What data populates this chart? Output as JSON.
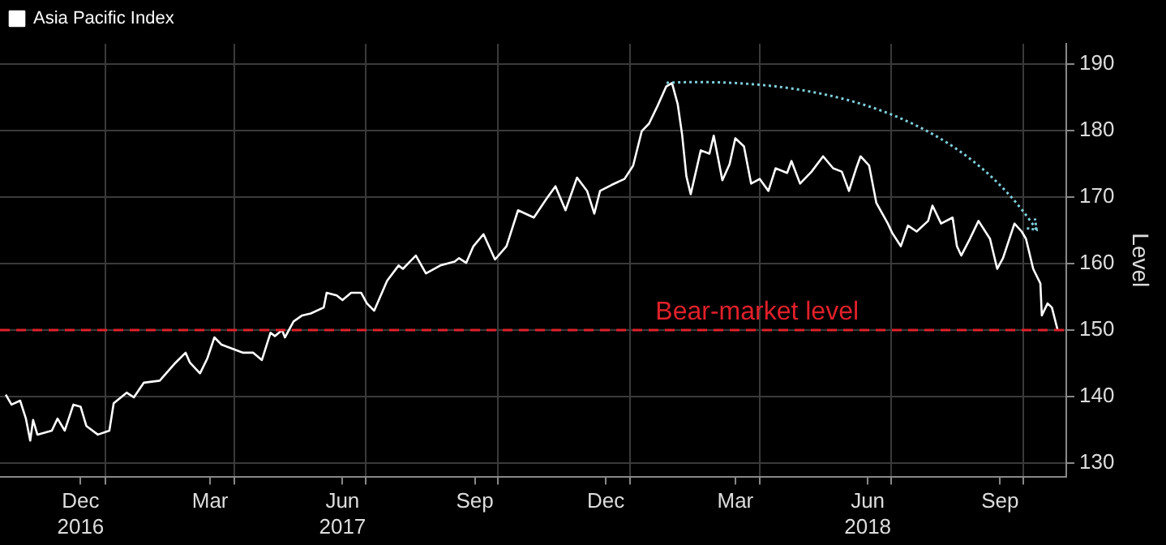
{
  "chart_data": {
    "type": "line",
    "ylabel": "Level",
    "legend": "top left",
    "grid": true,
    "xlim": [
      "2016-10-20",
      "2018-10-31"
    ],
    "ylim": [
      128,
      193
    ],
    "yticks": [
      130,
      140,
      150,
      160,
      170,
      180,
      190
    ],
    "xticks": [
      {
        "value": "2016-12-15",
        "label": "Dec\n2016"
      },
      {
        "value": "2017-01-01",
        "label": null
      },
      {
        "value": "2017-03-15",
        "label": "Mar"
      },
      {
        "value": "2017-04-01",
        "label": null
      },
      {
        "value": "2017-06-15",
        "label": "Jun\n2017"
      },
      {
        "value": "2017-07-01",
        "label": null
      },
      {
        "value": "2017-09-15",
        "label": "Sep"
      },
      {
        "value": "2017-10-01",
        "label": null
      },
      {
        "value": "2017-12-15",
        "label": "Dec"
      },
      {
        "value": "2018-01-01",
        "label": null
      },
      {
        "value": "2018-03-15",
        "label": "Mar"
      },
      {
        "value": "2018-04-01",
        "label": null
      },
      {
        "value": "2018-06-15",
        "label": "Jun\n2018"
      },
      {
        "value": "2018-07-01",
        "label": null
      },
      {
        "value": "2018-09-15",
        "label": "Sep"
      },
      {
        "value": "2018-10-01",
        "label": null
      }
    ],
    "ref_lines": [
      {
        "axis": "y",
        "value": 150,
        "label": "Bear-market level",
        "color": "#e0202a",
        "line_style": "dashed"
      }
    ],
    "series": [
      {
        "name": "Asia Pacific Index",
        "color": "#ffffff",
        "x": [
          "2016-10-24",
          "2016-10-28",
          "2016-11-03",
          "2016-11-07",
          "2016-11-10",
          "2016-11-12",
          "2016-11-15",
          "2016-11-25",
          "2016-11-29",
          "2016-12-04",
          "2016-12-10",
          "2016-12-15",
          "2016-12-19",
          "2016-12-27",
          "2017-01-04",
          "2017-01-07",
          "2017-01-16",
          "2017-01-21",
          "2017-01-28",
          "2017-02-08",
          "2017-02-19",
          "2017-02-26",
          "2017-03-01",
          "2017-03-08",
          "2017-03-13",
          "2017-03-18",
          "2017-03-23",
          "2017-04-07",
          "2017-04-14",
          "2017-04-20",
          "2017-04-26",
          "2017-04-29",
          "2017-05-04",
          "2017-05-06",
          "2017-05-12",
          "2017-05-18",
          "2017-05-24",
          "2017-06-02",
          "2017-06-04",
          "2017-06-11",
          "2017-06-15",
          "2017-06-21",
          "2017-06-28",
          "2017-07-02",
          "2017-07-07",
          "2017-07-16",
          "2017-07-24",
          "2017-07-27",
          "2017-08-05",
          "2017-08-12",
          "2017-08-22",
          "2017-09-01",
          "2017-09-04",
          "2017-09-09",
          "2017-09-14",
          "2017-09-21",
          "2017-09-29",
          "2017-10-07",
          "2017-10-15",
          "2017-10-26",
          "2017-11-04",
          "2017-11-10",
          "2017-11-17",
          "2017-11-25",
          "2017-12-02",
          "2017-12-07",
          "2017-12-11",
          "2017-12-19",
          "2017-12-28",
          "2018-01-03",
          "2018-01-09",
          "2018-01-14",
          "2018-01-20",
          "2018-01-26",
          "2018-01-30",
          "2018-02-03",
          "2018-02-06",
          "2018-02-09",
          "2018-02-12",
          "2018-02-19",
          "2018-02-25",
          "2018-02-28",
          "2018-03-06",
          "2018-03-11",
          "2018-03-15",
          "2018-03-21",
          "2018-03-26",
          "2018-04-01",
          "2018-04-07",
          "2018-04-12",
          "2018-04-20",
          "2018-04-23",
          "2018-04-29",
          "2018-05-07",
          "2018-05-15",
          "2018-05-22",
          "2018-05-28",
          "2018-06-02",
          "2018-06-07",
          "2018-06-10",
          "2018-06-16",
          "2018-06-21",
          "2018-06-29",
          "2018-07-02",
          "2018-07-08",
          "2018-07-13",
          "2018-07-19",
          "2018-07-27",
          "2018-07-30",
          "2018-08-05",
          "2018-08-13",
          "2018-08-16",
          "2018-08-19",
          "2018-08-25",
          "2018-08-31",
          "2018-09-08",
          "2018-09-13",
          "2018-09-17",
          "2018-09-25",
          "2018-09-30",
          "2018-10-03",
          "2018-10-08",
          "2018-10-13",
          "2018-10-14",
          "2018-10-18",
          "2018-10-21",
          "2018-10-25"
        ],
        "values": [
          140.3,
          138.8,
          139.4,
          136.7,
          133.4,
          136.5,
          134.3,
          134.9,
          136.7,
          134.9,
          138.8,
          138.5,
          135.6,
          134.3,
          134.9,
          139,
          140.6,
          139.9,
          142.1,
          142.4,
          145.1,
          146.6,
          145.1,
          143.5,
          145.7,
          148.9,
          147.8,
          146.6,
          146.6,
          145.5,
          149.6,
          149.1,
          150,
          148.9,
          151.3,
          152.2,
          152.5,
          153.4,
          155.6,
          155.2,
          154.5,
          155.6,
          155.6,
          154,
          152.9,
          157.4,
          159.7,
          159.2,
          161.2,
          158.5,
          159.7,
          160.3,
          160.8,
          160.1,
          162.6,
          164.4,
          160.6,
          162.6,
          168,
          166.9,
          169.8,
          171.6,
          168,
          172.9,
          170.9,
          167.5,
          170.9,
          171.8,
          172.7,
          174.7,
          179.9,
          181,
          183.7,
          186.6,
          187.1,
          183.9,
          179.4,
          173.1,
          170.4,
          177,
          176.5,
          179.2,
          172.5,
          174.9,
          178.8,
          177.6,
          172,
          172.7,
          170.9,
          174.3,
          173.6,
          175.4,
          172,
          173.8,
          176.1,
          174.3,
          173.8,
          170.9,
          174.3,
          176.1,
          174.7,
          169.1,
          166,
          164.6,
          162.6,
          165.7,
          164.8,
          166.4,
          168.7,
          166,
          166.9,
          162.6,
          161.2,
          163.7,
          166.4,
          163.7,
          159.2,
          160.8,
          166,
          164.8,
          163.7,
          159.2,
          157,
          152.2,
          154,
          153.4,
          150
        ]
      }
    ]
  }
}
